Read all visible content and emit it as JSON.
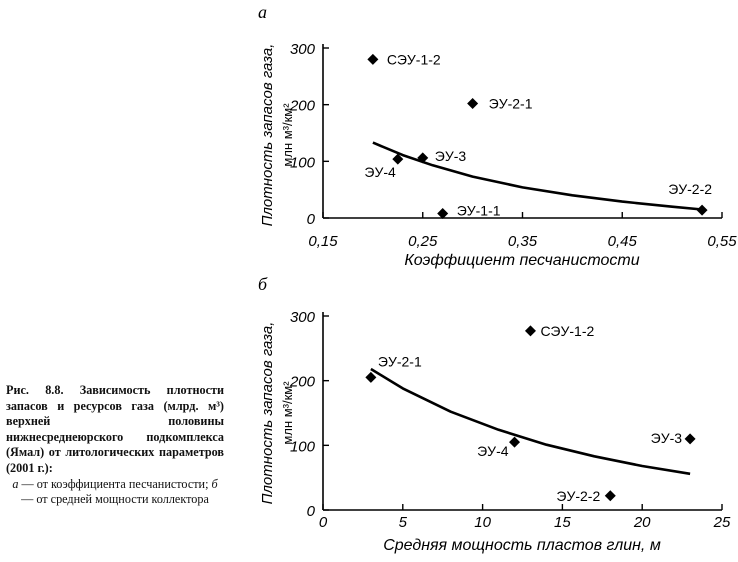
{
  "caption": {
    "title": "Рис. 8.8. Зависимость плотности запасов и ресурсов газа (млрд. м³) верхней половины нижнесреднеюрского подкомплекса (Ямал) от литологических параметров (2001 г.):",
    "line_a_letter": "а",
    "line_a_text": " — от коэффициента песчанистости;",
    "line_b_letter": "б",
    "line_b_text": " — от средней мощности коллектора"
  },
  "chart_data": [
    {
      "type": "scatter",
      "panel_letter": "а",
      "xlabel": "Коэффициент песчанистости",
      "ylabel": "Плотность запасов газа,",
      "ylabel2": "млн м³/км²",
      "xlim": [
        0.15,
        0.55
      ],
      "ylim": [
        0,
        300
      ],
      "xticks": [
        "0,15",
        "0,25",
        "0,35",
        "0,45",
        "0,55"
      ],
      "yticks": [
        "0",
        "100",
        "200",
        "300"
      ],
      "points": [
        {
          "label": "СЭУ-1-2",
          "x": 0.2,
          "y": 280
        },
        {
          "label": "ЭУ-2-1",
          "x": 0.3,
          "y": 202
        },
        {
          "label": "ЭУ-3",
          "x": 0.25,
          "y": 106
        },
        {
          "label": "ЭУ-4",
          "x": 0.225,
          "y": 104
        },
        {
          "label": "ЭУ-1-1",
          "x": 0.27,
          "y": 8
        },
        {
          "label": "ЭУ-2-2",
          "x": 0.53,
          "y": 14
        }
      ],
      "trend": {
        "x": [
          0.2,
          0.23,
          0.26,
          0.3,
          0.35,
          0.4,
          0.45,
          0.5,
          0.53
        ],
        "y": [
          133,
          111,
          93,
          73,
          54,
          40,
          29,
          20,
          15
        ]
      }
    },
    {
      "type": "scatter",
      "panel_letter": "б",
      "xlabel": "Средняя мощность пластов глин, м",
      "ylabel": "Плотность запасов газа,",
      "ylabel2": "млн м³/км²",
      "xlim": [
        0,
        25
      ],
      "ylim": [
        0,
        300
      ],
      "xticks": [
        "0",
        "5",
        "10",
        "15",
        "20",
        "25"
      ],
      "yticks": [
        "0",
        "100",
        "200",
        "300"
      ],
      "points": [
        {
          "label": "СЭУ-1-2",
          "x": 13,
          "y": 277
        },
        {
          "label": "ЭУ-2-1",
          "x": 3,
          "y": 205
        },
        {
          "label": "ЭУ-4",
          "x": 12,
          "y": 105
        },
        {
          "label": "ЭУ-3",
          "x": 23,
          "y": 110
        },
        {
          "label": "ЭУ-2-2",
          "x": 18,
          "y": 22
        }
      ],
      "trend": {
        "x": [
          3,
          5,
          8,
          11,
          14,
          17,
          20,
          23
        ],
        "y": [
          218,
          188,
          152,
          124,
          101,
          83,
          68,
          56
        ]
      }
    }
  ]
}
